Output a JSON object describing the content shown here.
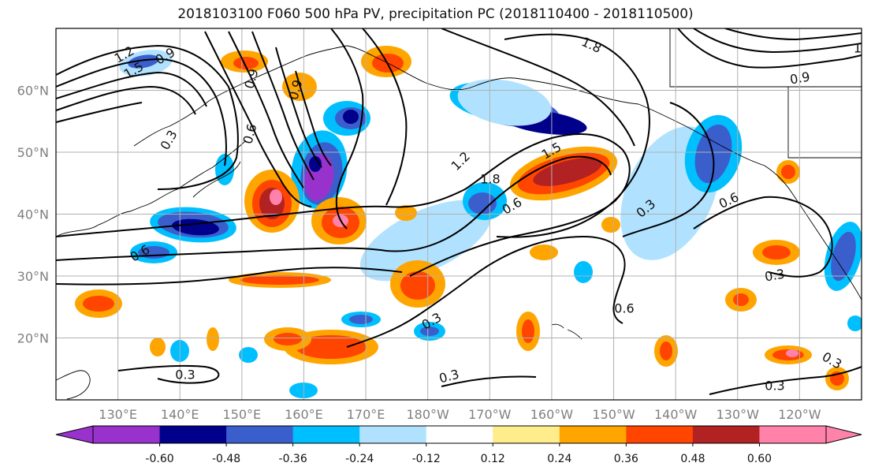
{
  "title": "2018103100 F060 500 hPa PV, precipitation PC (2018110400 - 2018110500)",
  "lat_labels": [
    "60°N",
    "50°N",
    "40°N",
    "30°N",
    "20°N"
  ],
  "lon_labels": [
    "130°E",
    "140°E",
    "150°E",
    "160°E",
    "170°E",
    "180°W",
    "170°W",
    "160°W",
    "150°W",
    "140°W",
    "130°W",
    "120°W"
  ],
  "colorbar": {
    "colors": [
      "#9932cc",
      "#00008b",
      "#3a5fcd",
      "#00bfff",
      "#b0e2ff",
      "#ffffff",
      "#ffec8b",
      "#ffa500",
      "#ff4500",
      "#b22222",
      "#ff82ab"
    ],
    "tick_labels": [
      "-0.60",
      "-0.48",
      "-0.36",
      "-0.24",
      "-0.12",
      "0.12",
      "0.24",
      "0.36",
      "0.48",
      "0.60"
    ],
    "under_color": "#9932cc",
    "over_color": "#ff82ab"
  },
  "contour_labels": [
    "1.2",
    "0.9",
    "1.5",
    "0.9",
    "0.6",
    "0.3",
    "1.2",
    "1.5",
    "1.8",
    "0.6",
    "0.9",
    "0.3",
    "0.6",
    "0.6",
    "0.3",
    "0.6",
    "0.3",
    "0.3",
    "0.3",
    "0.3",
    "0.3",
    "1.8",
    "0.9",
    "1"
  ],
  "chart_data": {
    "type": "map",
    "projection": "lat-lon",
    "lon_range": [
      120,
      250
    ],
    "lat_range": [
      10,
      70
    ],
    "grid": true,
    "contour_variable": "500 hPa PV",
    "contour_levels": [
      0.3,
      0.6,
      0.9,
      1.2,
      1.5,
      1.8
    ],
    "fill_variable": "precipitation PC",
    "fill_levels": [
      -0.6,
      -0.48,
      -0.36,
      -0.24,
      -0.12,
      0.12,
      0.24,
      0.36,
      0.48,
      0.6
    ]
  }
}
